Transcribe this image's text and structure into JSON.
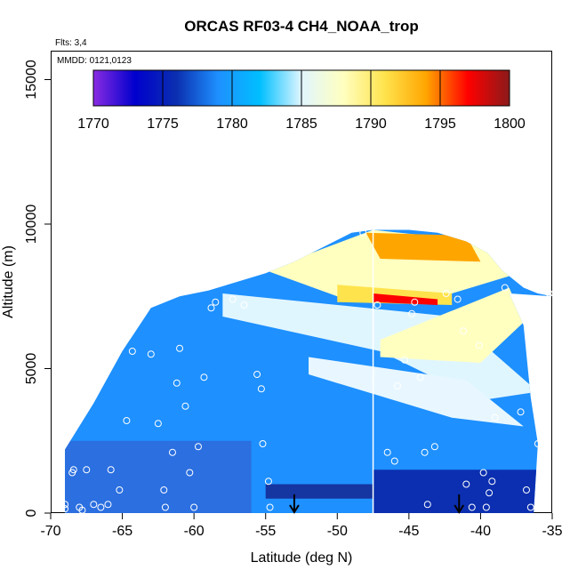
{
  "chart_data": {
    "type": "heatmap",
    "title": "ORCAS RF03-4 CH4_NOAA_trop",
    "flights_label": "Flts: 3,4",
    "date_label": "MMDD: 0121,0123",
    "xlabel": "Latitude (deg N)",
    "ylabel": "Altitude (m)",
    "xlim": [
      -70,
      -35
    ],
    "ylim": [
      0,
      16000
    ],
    "x_ticks": [
      -70,
      -65,
      -60,
      -55,
      -50,
      -45,
      -40,
      -35
    ],
    "x_tick_labels": [
      "-70",
      "-65",
      "-60",
      "-55",
      "-50",
      "-45",
      "-40",
      "-35"
    ],
    "y_ticks": [
      0,
      5000,
      10000,
      15000
    ],
    "y_tick_labels": [
      "0",
      "5000",
      "10000",
      "15000"
    ],
    "colorbar": {
      "ticks": [
        1770,
        1775,
        1780,
        1785,
        1790,
        1795,
        1800
      ],
      "tick_labels": [
        "1770",
        "1775",
        "1780",
        "1785",
        "1790",
        "1795",
        "1800"
      ],
      "range": [
        1770,
        1800
      ],
      "colors": [
        "#8a2be2",
        "#0000cd",
        "#0b2fb0",
        "#1e90ff",
        "#00bfff",
        "#e0f6ff",
        "#ffffc0",
        "#ffe34d",
        "#ffa500",
        "#ff0000",
        "#8b1a1a"
      ]
    },
    "ceiling_profile": [
      [
        -69,
        2200
      ],
      [
        -67,
        3800
      ],
      [
        -65,
        5600
      ],
      [
        -63,
        7100
      ],
      [
        -61,
        7500
      ],
      [
        -59,
        7700
      ],
      [
        -57,
        8000
      ],
      [
        -55,
        8300
      ],
      [
        -53,
        8700
      ],
      [
        -51,
        9200
      ],
      [
        -49,
        9700
      ],
      [
        -47.5,
        9800
      ],
      [
        -45,
        9800
      ],
      [
        -43,
        9700
      ],
      [
        -41,
        9400
      ],
      [
        -39.5,
        9000
      ],
      [
        -38.5,
        8400
      ],
      [
        -37,
        7800
      ],
      [
        -36,
        7600
      ],
      [
        -35,
        7500
      ]
    ],
    "floor_right_profile": [
      [
        -38,
        7600
      ],
      [
        -37,
        6500
      ],
      [
        -36.5,
        4000
      ],
      [
        -36,
        2400
      ],
      [
        -36.3,
        0
      ]
    ],
    "flight_line_lat": -47.5,
    "arrows_lat": [
      -53,
      -41.5
    ],
    "sample_points": [
      [
        -69,
        300
      ],
      [
        -69,
        150
      ],
      [
        -68.5,
        1400
      ],
      [
        -68.4,
        1500
      ],
      [
        -68,
        200
      ],
      [
        -67.8,
        100
      ],
      [
        -67.5,
        1500
      ],
      [
        -67,
        300
      ],
      [
        -66.5,
        200
      ],
      [
        -66,
        300
      ],
      [
        -65.8,
        1500
      ],
      [
        -65.2,
        800
      ],
      [
        -64.7,
        3200
      ],
      [
        -64.3,
        5600
      ],
      [
        -63.5,
        7100
      ],
      [
        -63,
        5500
      ],
      [
        -62.5,
        3100
      ],
      [
        -62.1,
        800
      ],
      [
        -62,
        200
      ],
      [
        -61.5,
        2100
      ],
      [
        -61.2,
        4500
      ],
      [
        -61,
        5700
      ],
      [
        -60.6,
        3700
      ],
      [
        -60.3,
        1400
      ],
      [
        -60,
        200
      ],
      [
        -59.7,
        2300
      ],
      [
        -59.3,
        4700
      ],
      [
        -58.8,
        7100
      ],
      [
        -58.5,
        7300
      ],
      [
        -57.3,
        7400
      ],
      [
        -56.8,
        8300
      ],
      [
        -56.5,
        7200
      ],
      [
        -55.6,
        4800
      ],
      [
        -55.3,
        4300
      ],
      [
        -55.2,
        2400
      ],
      [
        -54.8,
        1100
      ],
      [
        -54.7,
        200
      ],
      [
        -48.2,
        9700
      ],
      [
        -47.2,
        7200
      ],
      [
        -46.5,
        2100
      ],
      [
        -46,
        1800
      ],
      [
        -45.8,
        4400
      ],
      [
        -45.3,
        5300
      ],
      [
        -44.8,
        6900
      ],
      [
        -44.6,
        7300
      ],
      [
        -44.2,
        4700
      ],
      [
        -43.9,
        2100
      ],
      [
        -43.7,
        300
      ],
      [
        -43.2,
        2300
      ],
      [
        -42.4,
        7600
      ],
      [
        -41.6,
        7400
      ],
      [
        -41.2,
        6300
      ],
      [
        -41,
        1000
      ],
      [
        -40.6,
        200
      ],
      [
        -40.1,
        5800
      ],
      [
        -39.8,
        1400
      ],
      [
        -39.6,
        200
      ],
      [
        -39.4,
        700
      ],
      [
        -39.2,
        1100
      ],
      [
        -39,
        3300
      ],
      [
        -38.3,
        7800
      ],
      [
        -37.2,
        3500
      ],
      [
        -36.8,
        800
      ],
      [
        -36.5,
        200
      ],
      [
        -36,
        2400
      ],
      [
        -35.2,
        7600
      ]
    ]
  }
}
